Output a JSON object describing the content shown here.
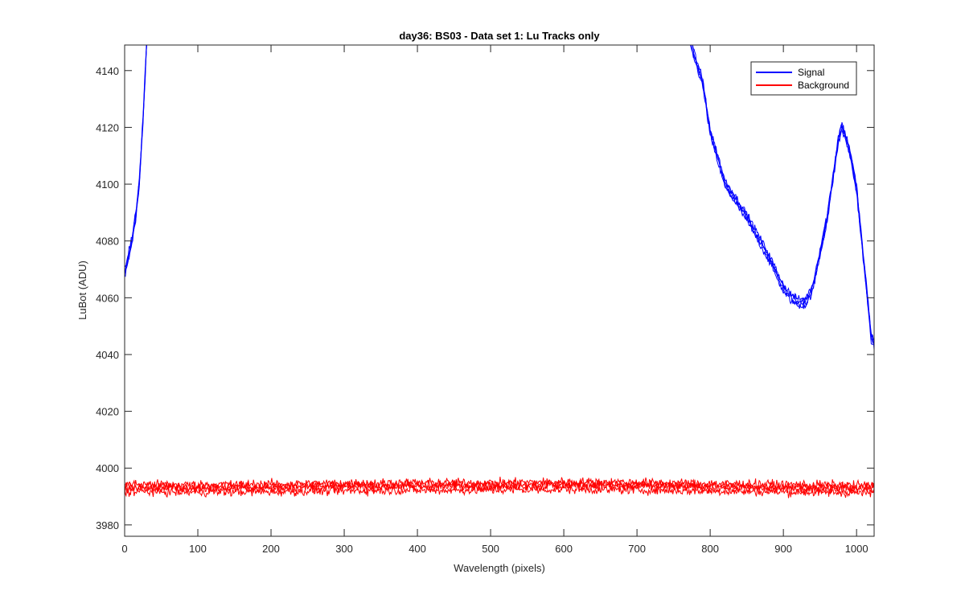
{
  "chart_data": {
    "type": "line",
    "title": "day36: BS03 - Data set 1: Lu Tracks only",
    "xlabel": "Wavelength (pixels)",
    "ylabel": "LuBot (ADU)",
    "xlim": [
      0,
      1024
    ],
    "ylim": [
      3976,
      4149
    ],
    "xticks": [
      0,
      100,
      200,
      300,
      400,
      500,
      600,
      700,
      800,
      900,
      1000
    ],
    "yticks": [
      3980,
      4000,
      4020,
      4040,
      4060,
      4080,
      4100,
      4120,
      4140
    ],
    "grid": false,
    "legend_position": "top-right",
    "series": [
      {
        "name": "Signal",
        "color": "#0000ff",
        "traces": 4,
        "x": [
          0,
          5,
          10,
          15,
          20,
          25,
          28,
          30,
          32,
          770,
          790,
          800,
          820,
          850,
          880,
          900,
          910,
          920,
          930,
          940,
          960,
          975,
          980,
          990,
          1000,
          1010,
          1020,
          1024
        ],
        "y": [
          4068,
          4074,
          4080,
          4088,
          4100,
          4122,
          4138,
          4149,
          4160,
          4152,
          4135,
          4118,
          4100,
          4088,
          4074,
          4063,
          4060,
          4058,
          4058,
          4063,
          4088,
          4115,
          4120,
          4112,
          4098,
          4072,
          4046,
          4043
        ]
      },
      {
        "name": "Background",
        "color": "#ff0000",
        "traces": 4,
        "x": [
          0,
          100,
          200,
          300,
          400,
          500,
          600,
          700,
          800,
          900,
          1000,
          1024
        ],
        "y": [
          3993,
          3992.8,
          3993,
          3993.3,
          3993.5,
          3993.5,
          3993.8,
          3993.6,
          3993.2,
          3992.9,
          3992.6,
          3992.5
        ]
      }
    ]
  }
}
